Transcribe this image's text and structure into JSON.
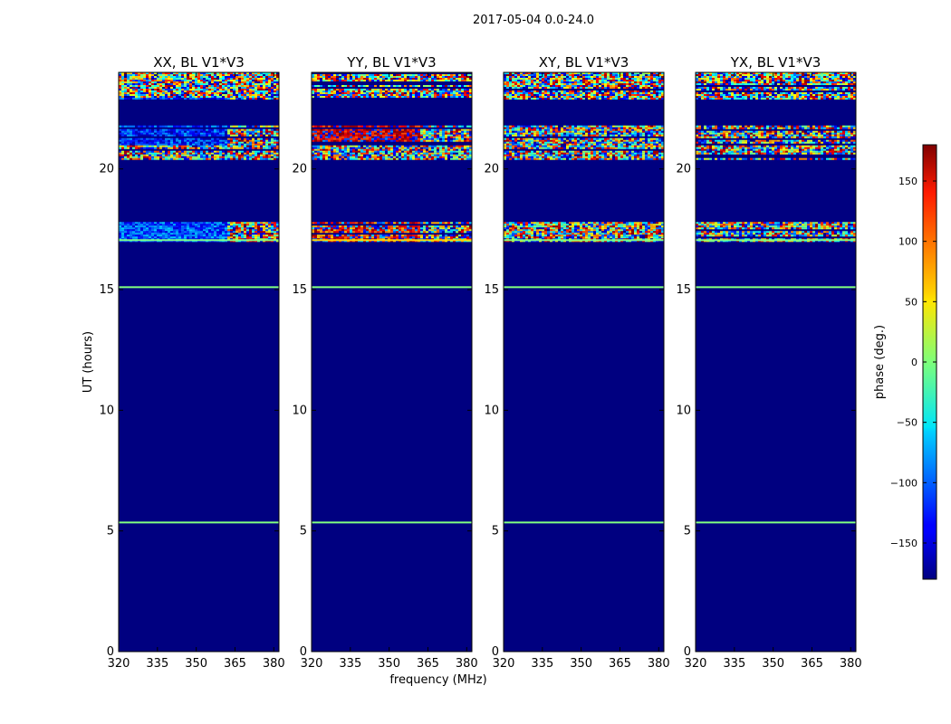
{
  "chart_data": {
    "type": "heatmap",
    "suptitle": "2017-05-04 0.0-24.0",
    "xlabel": "frequency (MHz)",
    "ylabel": "UT (hours)",
    "xlim": [
      320,
      382
    ],
    "ylim": [
      0,
      24
    ],
    "xticks": [
      320,
      335,
      350,
      365,
      380
    ],
    "yticks": [
      0,
      5,
      10,
      15,
      20
    ],
    "background_phase_deg": -180,
    "colorbar": {
      "label": "phase (deg.)",
      "range": [
        -180,
        180
      ],
      "ticks": [
        -150,
        -100,
        -50,
        0,
        50,
        100,
        150
      ],
      "colormap": "jet"
    },
    "panels": [
      {
        "title": "XX, BL V1*V3",
        "phase_mode": "cool",
        "noisy_bands_hours": [
          [
            22.9,
            24.0
          ],
          [
            20.9,
            21.8
          ],
          [
            20.4,
            20.9
          ],
          [
            17.0,
            17.8
          ]
        ],
        "blocked_region": {
          "freq_end_mhz": 361,
          "hours": [
            21.0,
            23.0
          ]
        },
        "flat_lines": [
          {
            "hour": 15.1,
            "phase_deg": 0
          },
          {
            "hour": 5.35,
            "phase_deg": 0
          },
          {
            "hour": 17.05,
            "phase_deg": 0
          }
        ]
      },
      {
        "title": "YY, BL V1*V3",
        "phase_mode": "warm",
        "noisy_bands_hours": [
          [
            22.9,
            24.0
          ],
          [
            20.9,
            21.8
          ],
          [
            20.4,
            20.9
          ],
          [
            17.0,
            17.8
          ]
        ],
        "blocked_region": {
          "freq_end_mhz": 361,
          "hours": [
            21.0,
            23.0
          ]
        },
        "flat_lines": [
          {
            "hour": 15.1,
            "phase_deg": 0
          },
          {
            "hour": 5.35,
            "phase_deg": 0
          },
          {
            "hour": 17.05,
            "phase_deg": 60
          }
        ]
      },
      {
        "title": "XY, BL V1*V3",
        "phase_mode": "random",
        "noisy_bands_hours": [
          [
            22.9,
            24.0
          ],
          [
            20.9,
            21.8
          ],
          [
            20.4,
            20.9
          ],
          [
            17.0,
            17.8
          ]
        ],
        "flat_lines": [
          {
            "hour": 15.1,
            "phase_deg": 0
          },
          {
            "hour": 5.35,
            "phase_deg": 0
          },
          {
            "hour": 17.05,
            "phase_deg": 0
          }
        ]
      },
      {
        "title": "YX, BL V1*V3",
        "phase_mode": "random",
        "noisy_bands_hours": [
          [
            22.9,
            24.0
          ],
          [
            20.9,
            21.8
          ],
          [
            20.4,
            20.9
          ],
          [
            17.0,
            17.8
          ]
        ],
        "flat_lines": [
          {
            "hour": 15.1,
            "phase_deg": 0
          },
          {
            "hour": 5.35,
            "phase_deg": 0
          },
          {
            "hour": 17.05,
            "phase_deg": 0
          }
        ]
      }
    ]
  }
}
